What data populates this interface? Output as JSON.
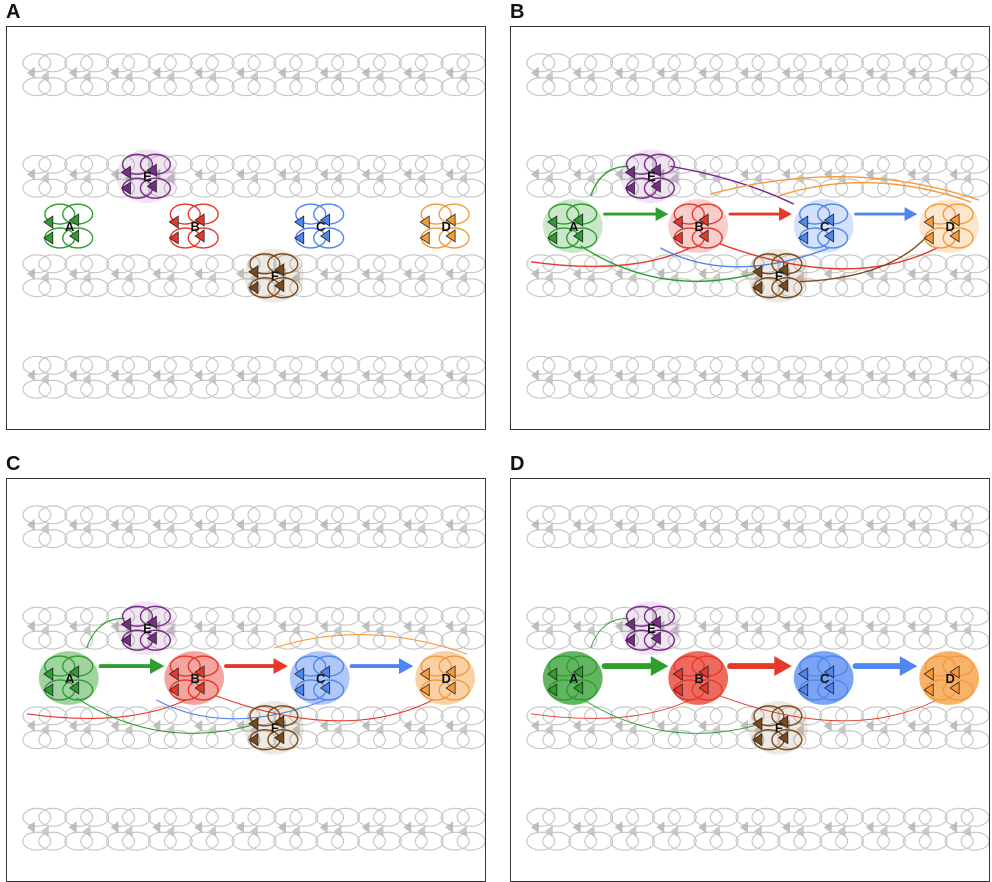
{
  "panels": [
    {
      "letter": "A",
      "stage": 0
    },
    {
      "letter": "B",
      "stage": 1
    },
    {
      "letter": "C",
      "stage": 2
    },
    {
      "letter": "D",
      "stage": 3
    }
  ],
  "nodes": [
    {
      "id": "A",
      "label": "A",
      "color": "#2e9e2e"
    },
    {
      "id": "B",
      "label": "B",
      "color": "#e8382a"
    },
    {
      "id": "C",
      "label": "C",
      "color": "#4f86f0"
    },
    {
      "id": "D",
      "label": "D",
      "color": "#f59a3a"
    },
    {
      "id": "E",
      "label": "E",
      "color": "#7a2a8a"
    },
    {
      "id": "F",
      "label": "F",
      "color": "#7a4a1a"
    }
  ],
  "chain": [
    "A",
    "B",
    "C",
    "D"
  ],
  "colors": {
    "background_cells": "#c8c8c8",
    "frame": "#333333"
  }
}
